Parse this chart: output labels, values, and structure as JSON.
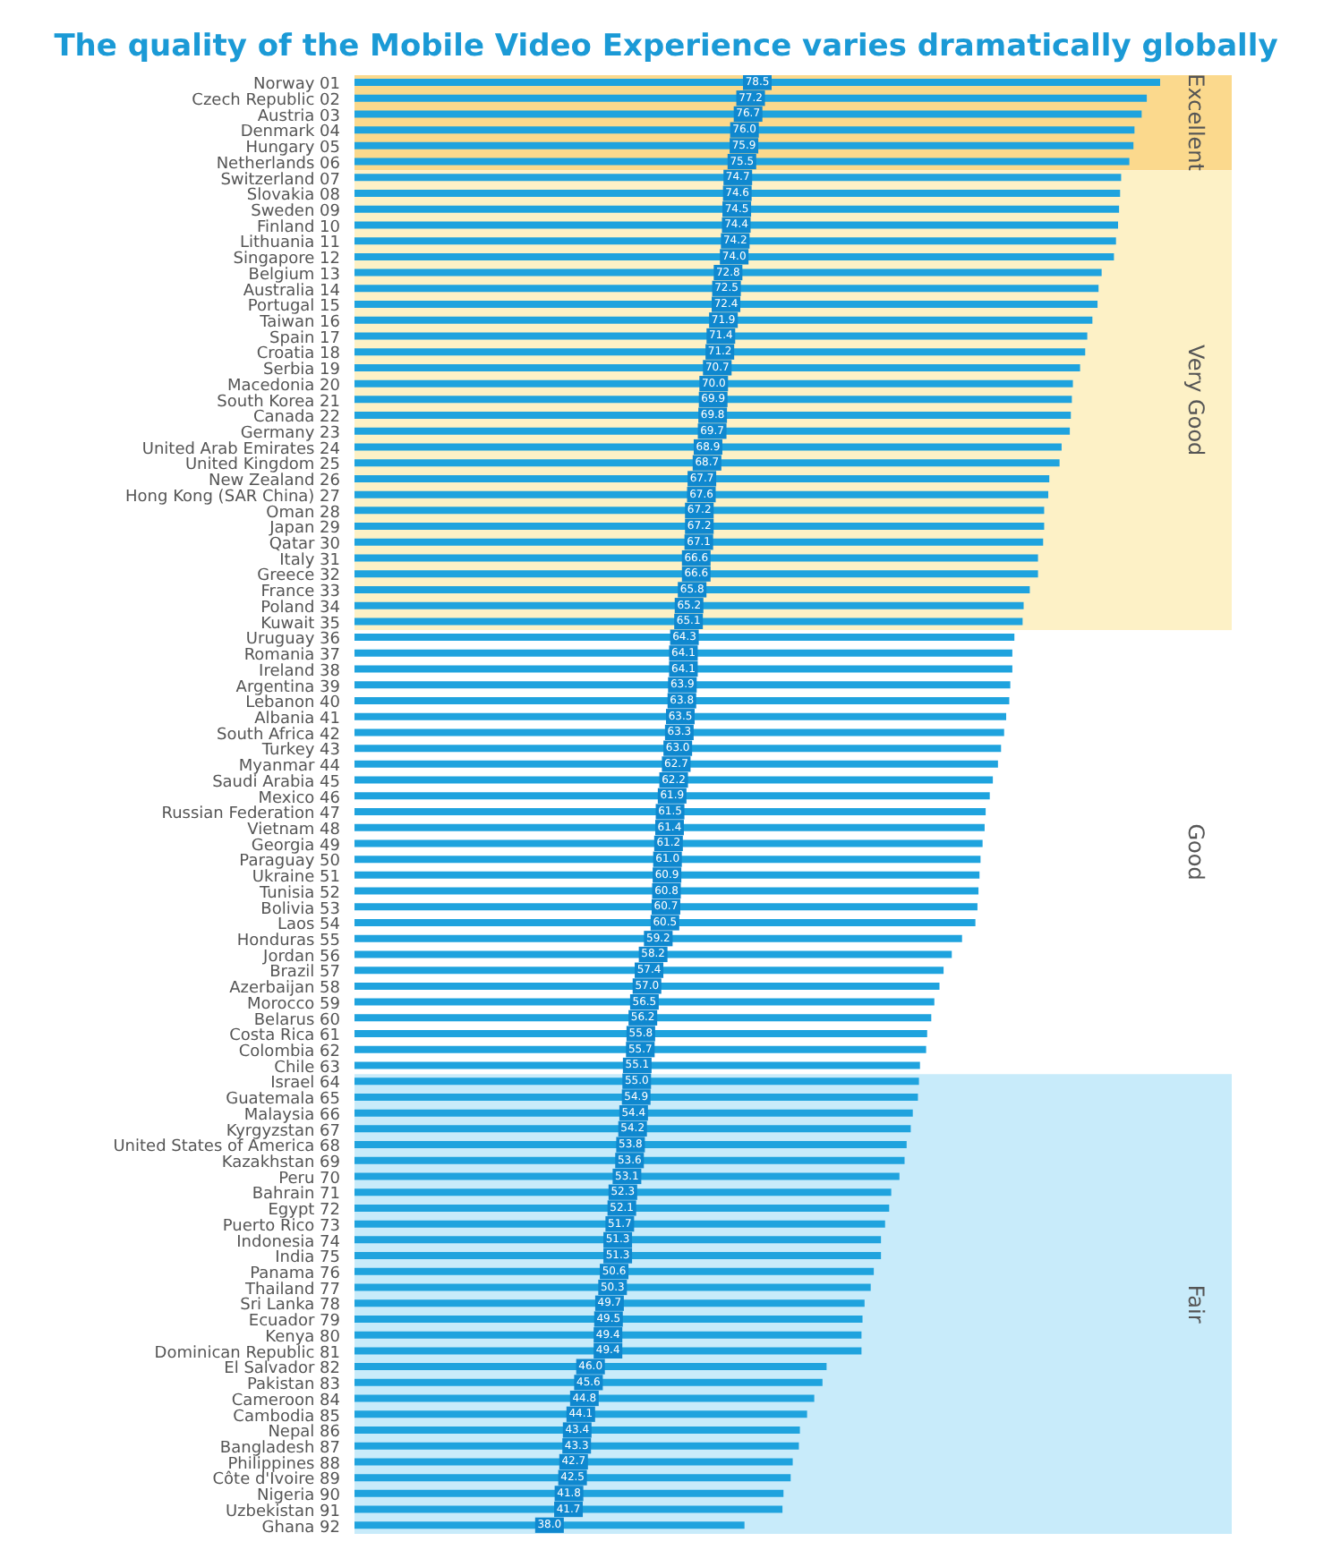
{
  "chart_data": {
    "type": "bar",
    "orientation": "horizontal",
    "title": "The quality of the Mobile Video Experience varies dramatically globally",
    "categories": [
      "Norway 01",
      "Czech Republic 02",
      "Austria 03",
      "Denmark 04",
      "Hungary 05",
      "Netherlands 06",
      "Switzerland 07",
      "Slovakia 08",
      "Sweden 09",
      "Finland 10",
      "Lithuania 11",
      "Singapore 12",
      "Belgium 13",
      "Australia 14",
      "Portugal 15",
      "Taiwan 16",
      "Spain 17",
      "Croatia 18",
      "Serbia 19",
      "Macedonia 20",
      "South Korea 21",
      "Canada 22",
      "Germany 23",
      "United Arab Emirates 24",
      "United Kingdom 25",
      "New Zealand 26",
      "Hong Kong (SAR China) 27",
      "Oman 28",
      "Japan 29",
      "Qatar 30",
      "Italy 31",
      "Greece 32",
      "France 33",
      "Poland 34",
      "Kuwait 35",
      "Uruguay 36",
      "Romania 37",
      "Ireland 38",
      "Argentina 39",
      "Lebanon 40",
      "Albania 41",
      "South Africa 42",
      "Turkey 43",
      "Myanmar 44",
      "Saudi Arabia 45",
      "Mexico 46",
      "Russian Federation 47",
      "Vietnam 48",
      "Georgia 49",
      "Paraguay 50",
      "Ukraine 51",
      "Tunisia 52",
      "Bolivia 53",
      "Laos 54",
      "Honduras 55",
      "Jordan 56",
      "Brazil 57",
      "Azerbaijan 58",
      "Morocco 59",
      "Belarus 60",
      "Costa Rica 61",
      "Colombia 62",
      "Chile 63",
      "Israel 64",
      "Guatemala 65",
      "Malaysia 66",
      "Kyrgyzstan 67",
      "United States of America 68",
      "Kazakhstan 69",
      "Peru 70",
      "Bahrain 71",
      "Egypt 72",
      "Puerto Rico 73",
      "Indonesia 74",
      "India 75",
      "Panama 76",
      "Thailand 77",
      "Sri Lanka 78",
      "Ecuador 79",
      "Kenya 80",
      "Dominican Republic 81",
      "El Salvador 82",
      "Pakistan 83",
      "Cameroon 84",
      "Cambodia 85",
      "Nepal 86",
      "Bangladesh 87",
      "Philippines 88",
      "Côte d'Ivoire 89",
      "Nigeria 90",
      "Uzbekistan 91",
      "Ghana 92"
    ],
    "values": [
      78.5,
      77.2,
      76.7,
      76.0,
      75.9,
      75.5,
      74.7,
      74.6,
      74.5,
      74.4,
      74.2,
      74.0,
      72.8,
      72.5,
      72.4,
      71.9,
      71.4,
      71.2,
      70.7,
      70.0,
      69.9,
      69.8,
      69.7,
      68.9,
      68.7,
      67.7,
      67.6,
      67.2,
      67.2,
      67.1,
      66.6,
      66.6,
      65.8,
      65.2,
      65.1,
      64.3,
      64.1,
      64.1,
      63.9,
      63.8,
      63.5,
      63.3,
      63.0,
      62.7,
      62.2,
      61.9,
      61.5,
      61.4,
      61.2,
      61.0,
      60.9,
      60.8,
      60.7,
      60.5,
      59.2,
      58.2,
      57.4,
      57.0,
      56.5,
      56.2,
      55.8,
      55.7,
      55.1,
      55.0,
      54.9,
      54.4,
      54.2,
      53.8,
      53.6,
      53.1,
      52.3,
      52.1,
      51.7,
      51.3,
      51.3,
      50.6,
      50.3,
      49.7,
      49.5,
      49.4,
      49.4,
      46.0,
      45.6,
      44.8,
      44.1,
      43.4,
      43.3,
      42.7,
      42.5,
      41.8,
      41.7,
      38.0
    ],
    "value_labels": [
      "78.5",
      "77.2",
      "76.7",
      "76.0",
      "75.9",
      "75.5",
      "74.7",
      "74.6",
      "74.5",
      "74.4",
      "74.2",
      "74.0",
      "72.8",
      "72.5",
      "72.4",
      "71.9",
      "71.4",
      "71.2",
      "70.7",
      "70.0",
      "69.9",
      "69.8",
      "69.7",
      "68.9",
      "68.7",
      "67.7",
      "67.6",
      "67.2",
      "67.2",
      "67.1",
      "66.6",
      "66.6",
      "65.8",
      "65.2",
      "65.1",
      "64.3",
      "64.1",
      "64.1",
      "63.9",
      "63.8",
      "63.5",
      "63.3",
      "63.0",
      "62.7",
      "62.2",
      "61.9",
      "61.5",
      "61.4",
      "61.2",
      "61.0",
      "60.9",
      "60.8",
      "60.7",
      "60.5",
      "59.2",
      "58.2",
      "57.4",
      "57.0",
      "56.5",
      "56.2",
      "55.8",
      "55.7",
      "55.1",
      "55.0",
      "54.9",
      "54.4",
      "54.2",
      "53.8",
      "53.6",
      "53.1",
      "52.3",
      "52.1",
      "51.7",
      "51.3",
      "51.3",
      "50.6",
      "50.3",
      "49.7",
      "49.5",
      "49.4",
      "49.4",
      "46.0",
      "45.6",
      "44.8",
      "44.1",
      "43.4",
      "43.3",
      "42.7",
      "42.5",
      "41.8",
      "41.7",
      "38.0"
    ],
    "annotations": [
      "Good"
    ],
    "color": "#1fa3de",
    "tick_labels": "y",
    "grid": false,
    "legend": false,
    "bands": [
      {
        "axis": "y",
        "from": "Norway 01",
        "to": "Netherlands 06",
        "label": "Excellent",
        "color": "#fbd98d"
      },
      {
        "axis": "y",
        "from": "Switzerland 07",
        "to": "Kuwait 35",
        "label": "Very Good",
        "color": "#fdf1c6"
      },
      {
        "axis": "y",
        "from": "Israel 64",
        "to": "Ghana 92",
        "label": "Fair",
        "color": "#c8ebfa"
      }
    ]
  }
}
